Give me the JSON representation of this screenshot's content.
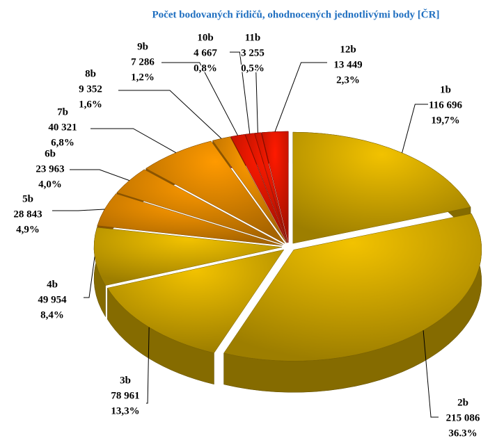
{
  "chart_data": {
    "type": "pie",
    "title": "Počet bodovaných řidičů, ohodnocených jednotlivými body [ČR]",
    "categories": [
      "1b",
      "2b",
      "3b",
      "4b",
      "5b",
      "6b",
      "7b",
      "8b",
      "9b",
      "10b",
      "11b",
      "12b"
    ],
    "values": [
      116696,
      215086,
      78961,
      49954,
      28843,
      23963,
      40321,
      9352,
      7286,
      4667,
      3255,
      13449
    ],
    "value_labels": [
      "116 696",
      "215 086",
      "78 961",
      "49 954",
      "28 843",
      "23 963",
      "40 321",
      "9 352",
      "7 286",
      "4 667",
      "3 255",
      "13 449"
    ],
    "percent_labels": [
      "19,7%",
      "36.3%",
      "13,3%",
      "8,4%",
      "4,9%",
      "4,0%",
      "6,8%",
      "1,6%",
      "1,2%",
      "0,8%",
      "0,5%",
      "2,3%"
    ],
    "colors": [
      "#f2c200",
      "#f2c200",
      "#f2c200",
      "#f2c200",
      "#ff9a00",
      "#ff9a00",
      "#ff9a00",
      "#ff9a00",
      "#ff1a00",
      "#ff1a00",
      "#ff1a00",
      "#ff1a00"
    ]
  }
}
